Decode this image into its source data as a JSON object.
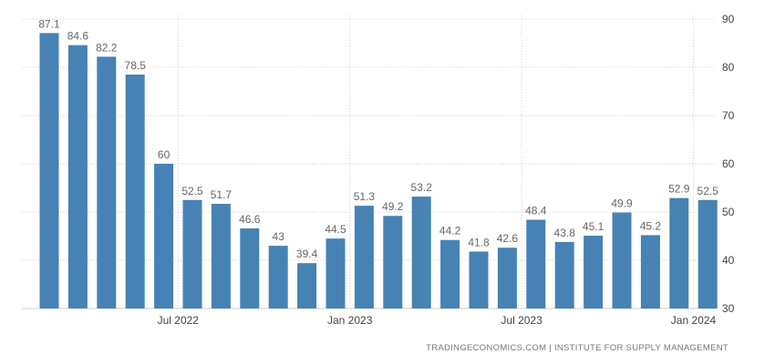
{
  "chart_data": {
    "type": "bar",
    "categories": [
      "2022-03",
      "2022-04",
      "2022-05",
      "2022-06",
      "2022-07",
      "2022-08",
      "2022-09",
      "2022-10",
      "2022-11",
      "2022-12",
      "2023-01",
      "2023-02",
      "2023-03",
      "2023-04",
      "2023-05",
      "2023-06",
      "2023-07",
      "2023-08",
      "2023-09",
      "2023-10",
      "2023-11",
      "2023-12",
      "2024-01",
      "2024-02"
    ],
    "values": [
      87.1,
      84.6,
      82.2,
      78.5,
      60,
      52.5,
      51.7,
      46.6,
      43,
      39.4,
      44.5,
      51.3,
      49.2,
      53.2,
      44.2,
      41.8,
      42.6,
      48.4,
      43.8,
      45.1,
      49.9,
      45.2,
      52.9,
      52.5
    ],
    "value_labels": [
      "87.1",
      "84.6",
      "82.2",
      "78.5",
      "60",
      "52.5",
      "51.7",
      "46.6",
      "43",
      "39.4",
      "44.5",
      "51.3",
      "49.2",
      "53.2",
      "44.2",
      "41.8",
      "42.6",
      "48.4",
      "43.8",
      "45.1",
      "49.9",
      "45.2",
      "52.9",
      "52.5"
    ],
    "x_tick_labels": [
      {
        "label": "Jul 2022",
        "at_index": 4
      },
      {
        "label": "Jan 2023",
        "at_index": 10
      },
      {
        "label": "Jul 2023",
        "at_index": 16
      },
      {
        "label": "Jan 2024",
        "at_index": 22
      }
    ],
    "y_ticks": [
      30,
      40,
      50,
      60,
      70,
      80,
      90
    ],
    "ylim": [
      30,
      90
    ],
    "y_axis_side": "right",
    "grid": true,
    "bar_color": "#4682b4",
    "title": "",
    "xlabel": "",
    "ylabel": ""
  },
  "source_text": "TRADINGECONOMICS.COM  |  INSTITUTE FOR SUPPLY MANAGEMENT"
}
